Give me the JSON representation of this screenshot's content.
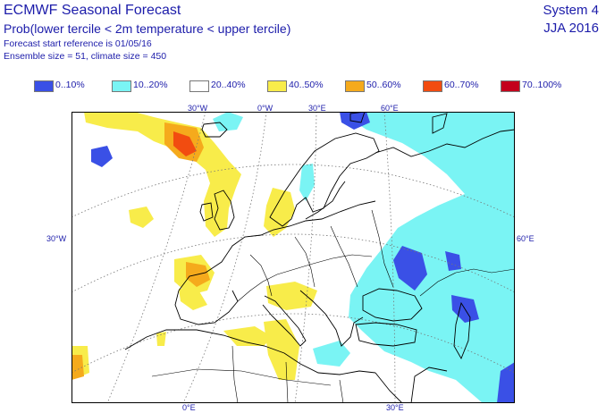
{
  "header": {
    "title": "ECMWF Seasonal Forecast",
    "subtitle": "Prob(lower tercile < 2m temperature < upper tercile)",
    "forecast_ref": "Forecast start reference is 01/05/16",
    "ensemble": "Ensemble size = 51, climate size = 450",
    "system": "System 4",
    "season": "JJA 2016"
  },
  "legend": [
    {
      "label": "0..10%",
      "color": "#3a50e6"
    },
    {
      "label": "10..20%",
      "color": "#7af4f4"
    },
    {
      "label": "20..40%",
      "color": "#ffffff"
    },
    {
      "label": "40..50%",
      "color": "#f8ec4a"
    },
    {
      "label": "50..60%",
      "color": "#f5aa1c"
    },
    {
      "label": "60..70%",
      "color": "#f24c10"
    },
    {
      "label": "70..100%",
      "color": "#c4001c"
    }
  ],
  "map": {
    "top_labels": [
      "30°W",
      "0°W",
      "30°E",
      "60°E"
    ],
    "left_label": "30°W",
    "right_label": "60°E",
    "bottom_labels": [
      "0°E",
      "30°E"
    ]
  }
}
